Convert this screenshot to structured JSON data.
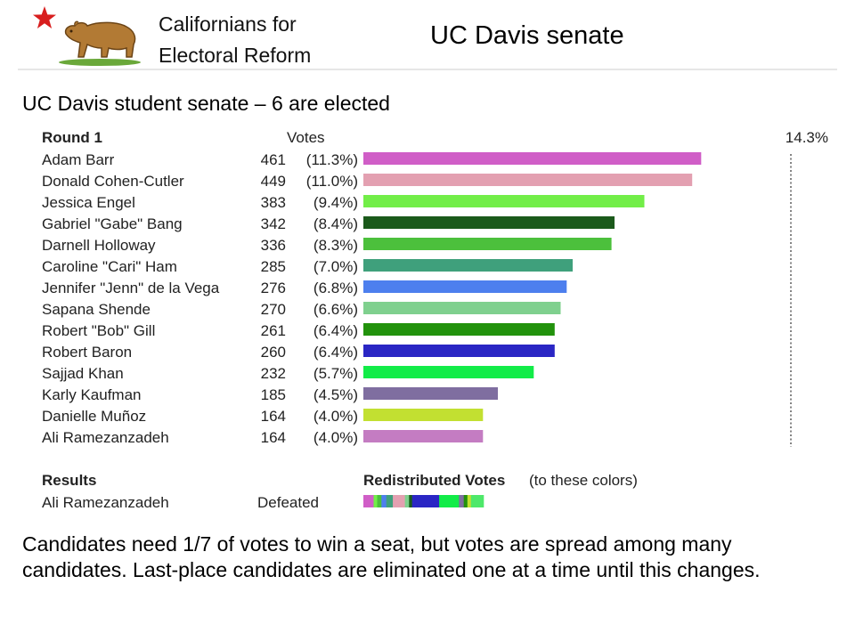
{
  "header": {
    "org_line1": "Californians for",
    "org_line2": "Electoral Reform",
    "slide_title": "UC Davis senate"
  },
  "subtitle": "UC Davis student senate – 6 are elected",
  "chart_data": {
    "type": "bar",
    "orientation": "horizontal",
    "round_label": "Round 1",
    "votes_header": "Votes",
    "threshold_label": "14.3%",
    "threshold_percent": 14.3,
    "xlim": [
      0,
      14.3
    ],
    "candidates": [
      {
        "name": "Adam Barr",
        "votes": 461,
        "pct_label": "(11.3%)",
        "pct": 11.3,
        "color": "#d05ec7"
      },
      {
        "name": "Donald Cohen-Cutler",
        "votes": 449,
        "pct_label": "(11.0%)",
        "pct": 11.0,
        "color": "#e3a0b1"
      },
      {
        "name": "Jessica Engel",
        "votes": 383,
        "pct_label": "(9.4%)",
        "pct": 9.4,
        "color": "#72ee48"
      },
      {
        "name": "Gabriel \"Gabe\" Bang",
        "votes": 342,
        "pct_label": "(8.4%)",
        "pct": 8.4,
        "color": "#1b5a1b"
      },
      {
        "name": "Darnell Holloway",
        "votes": 336,
        "pct_label": "(8.3%)",
        "pct": 8.3,
        "color": "#4cc03c"
      },
      {
        "name": "Caroline \"Cari\" Ham",
        "votes": 285,
        "pct_label": "(7.0%)",
        "pct": 7.0,
        "color": "#3fa07c"
      },
      {
        "name": "Jennifer \"Jenn\" de la Vega",
        "votes": 276,
        "pct_label": "(6.8%)",
        "pct": 6.8,
        "color": "#4d7fee"
      },
      {
        "name": "Sapana Shende",
        "votes": 270,
        "pct_label": "(6.6%)",
        "pct": 6.6,
        "color": "#7fd08e"
      },
      {
        "name": "Robert \"Bob\" Gill",
        "votes": 261,
        "pct_label": "(6.4%)",
        "pct": 6.4,
        "color": "#22920c"
      },
      {
        "name": "Robert Baron",
        "votes": 260,
        "pct_label": "(6.4%)",
        "pct": 6.4,
        "color": "#2a26c4"
      },
      {
        "name": "Sajjad Khan",
        "votes": 232,
        "pct_label": "(5.7%)",
        "pct": 5.7,
        "color": "#12ec48"
      },
      {
        "name": "Karly Kaufman",
        "votes": 185,
        "pct_label": "(4.5%)",
        "pct": 4.5,
        "color": "#7f6ea0"
      },
      {
        "name": "Danielle Muñoz",
        "votes": 164,
        "pct_label": "(4.0%)",
        "pct": 4.0,
        "color": "#c2e031"
      },
      {
        "name": "Ali Ramezanzadeh",
        "votes": 164,
        "pct_label": "(4.0%)",
        "pct": 4.0,
        "color": "#c47cc2"
      }
    ],
    "results_header": "Results",
    "results": [
      {
        "name": "Ali Ramezanzadeh",
        "status": "Defeated"
      }
    ],
    "redistributed_header": "Redistributed Votes",
    "redistributed_note": "(to these colors)",
    "redistributed_segments": [
      {
        "color": "#d05ec7",
        "share": 0.085
      },
      {
        "color": "#72ee48",
        "share": 0.03
      },
      {
        "color": "#4cc03c",
        "share": 0.035
      },
      {
        "color": "#4d7fee",
        "share": 0.04
      },
      {
        "color": "#3fa07c",
        "share": 0.055
      },
      {
        "color": "#e3a0b1",
        "share": 0.1
      },
      {
        "color": "#7fd08e",
        "share": 0.035
      },
      {
        "color": "#1b5a1b",
        "share": 0.025
      },
      {
        "color": "#2a26c4",
        "share": 0.225
      },
      {
        "color": "#12ec48",
        "share": 0.165
      },
      {
        "color": "#7f6ea0",
        "share": 0.04
      },
      {
        "color": "#22920c",
        "share": 0.03
      },
      {
        "color": "#c2e031",
        "share": 0.03
      },
      {
        "color": "#4ee86a",
        "share": 0.105
      }
    ]
  },
  "footer": "Candidates need 1/7 of votes to win a seat, but votes are spread among many candidates.  Last-place candidates are eliminated one at a time until this changes."
}
